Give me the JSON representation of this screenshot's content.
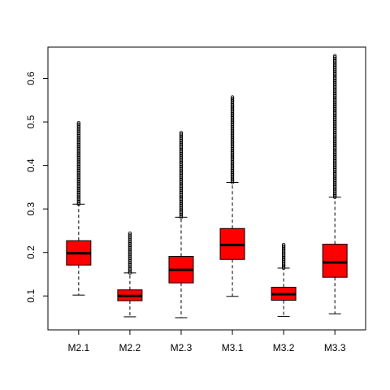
{
  "chart_data": {
    "type": "boxplot",
    "title": "",
    "xlabel": "",
    "ylabel": "",
    "ylim": [
      0.022,
      0.672
    ],
    "y_ticks": [
      "0.1",
      "0.2",
      "0.3",
      "0.4",
      "0.5",
      "0.6"
    ],
    "box_color": "#ff0000",
    "grid": false,
    "legend": "none",
    "categories": [
      "M2.1",
      "M2.2",
      "M2.3",
      "M3.1",
      "M3.2",
      "M3.3"
    ],
    "boxes": [
      {
        "name": "M2.1",
        "whisker_low": 0.102,
        "q1": 0.171,
        "median": 0.198,
        "q3": 0.227,
        "whisker_high": 0.311,
        "outlier_max": 0.498
      },
      {
        "name": "M2.2",
        "whisker_low": 0.052,
        "q1": 0.089,
        "median": 0.1,
        "q3": 0.114,
        "whisker_high": 0.153,
        "outlier_max": 0.244
      },
      {
        "name": "M2.3",
        "whisker_low": 0.05,
        "q1": 0.13,
        "median": 0.16,
        "q3": 0.191,
        "whisker_high": 0.281,
        "outlier_max": 0.475
      },
      {
        "name": "M3.1",
        "whisker_low": 0.099,
        "q1": 0.184,
        "median": 0.217,
        "q3": 0.255,
        "whisker_high": 0.361,
        "outlier_max": 0.557
      },
      {
        "name": "M3.2",
        "whisker_low": 0.053,
        "q1": 0.09,
        "median": 0.104,
        "q3": 0.12,
        "whisker_high": 0.164,
        "outlier_max": 0.218
      },
      {
        "name": "M3.3",
        "whisker_low": 0.059,
        "q1": 0.143,
        "median": 0.177,
        "q3": 0.219,
        "whisker_high": 0.327,
        "outlier_max": 0.652
      }
    ]
  }
}
